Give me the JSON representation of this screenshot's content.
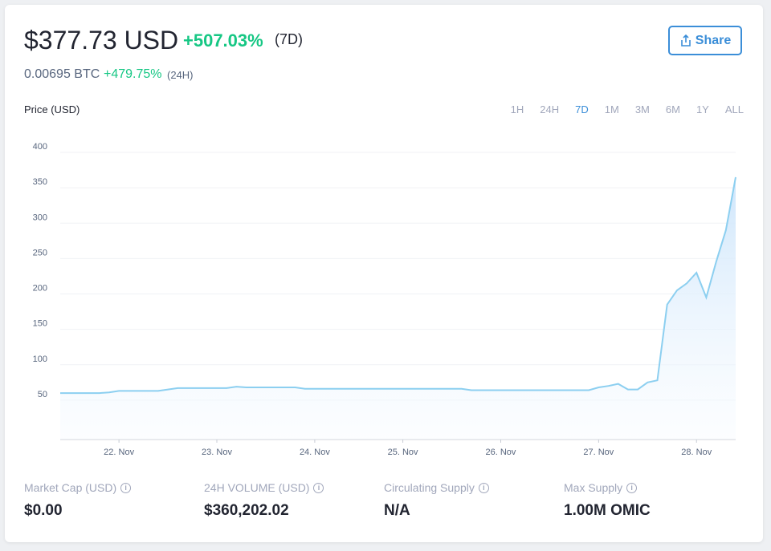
{
  "header": {
    "price": "$377.73 USD",
    "change_7d": "+507.03%",
    "period_7d": "(7D)",
    "btc_price": "0.00695 BTC",
    "change_24h": "+479.75%",
    "period_24h": "(24H)",
    "share": "Share"
  },
  "chart_data": {
    "type": "line",
    "y_label": "Price (USD)",
    "color": "#8ccff0",
    "ranges": [
      "1H",
      "24H",
      "7D",
      "1M",
      "3M",
      "6M",
      "1Y",
      "ALL"
    ],
    "active_range": "7D",
    "categories": [
      null,
      null,
      null,
      null,
      null,
      null,
      "22. Nov",
      null,
      null,
      null,
      null,
      null,
      null,
      null,
      null,
      null,
      "23. Nov",
      null,
      null,
      null,
      null,
      null,
      null,
      null,
      null,
      null,
      "24. Nov",
      null,
      null,
      null,
      null,
      null,
      null,
      null,
      null,
      "25. Nov",
      null,
      null,
      null,
      null,
      null,
      null,
      null,
      null,
      null,
      "26. Nov",
      null,
      null,
      null,
      null,
      null,
      null,
      null,
      null,
      null,
      "27. Nov",
      null,
      null,
      null,
      null,
      null,
      null,
      null,
      null,
      null,
      "28. Nov",
      null,
      null,
      null,
      null
    ],
    "values": [
      60,
      60,
      60,
      60,
      60,
      61,
      63,
      63,
      63,
      63,
      63,
      65,
      67,
      67,
      67,
      67,
      67,
      67,
      69,
      68,
      68,
      68,
      68,
      68,
      68,
      66,
      66,
      66,
      66,
      66,
      66,
      66,
      66,
      66,
      66,
      66,
      66,
      66,
      66,
      66,
      66,
      66,
      64,
      64,
      64,
      64,
      64,
      64,
      64,
      64,
      64,
      64,
      64,
      64,
      64,
      68,
      70,
      73,
      65,
      65,
      75,
      78,
      185,
      205,
      215,
      230,
      195,
      245,
      290,
      365
    ],
    "ylim": [
      0,
      400
    ],
    "yticks": [
      50,
      100,
      150,
      200,
      250,
      300,
      350,
      400
    ],
    "grid": true
  },
  "stats": [
    {
      "label": "Market Cap (USD)",
      "value": "$0.00"
    },
    {
      "label": "24H VOLUME (USD)",
      "value": "$360,202.02"
    },
    {
      "label": "Circulating Supply",
      "value": "N/A"
    },
    {
      "label": "Max Supply",
      "value": "1.00M OMIC"
    }
  ]
}
